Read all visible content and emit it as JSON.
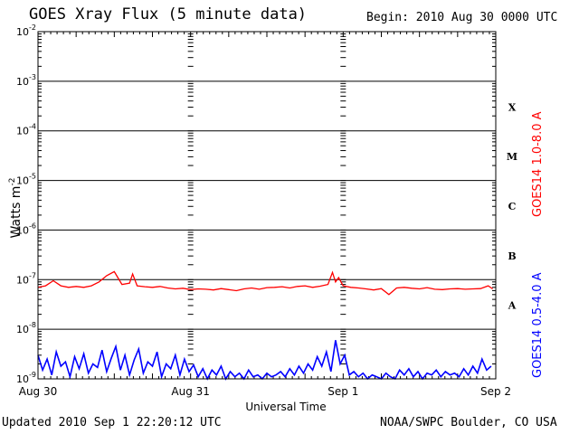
{
  "header": {
    "title": "GOES Xray Flux (5 minute data)",
    "begin": "Begin:  2010 Aug 30 0000 UTC"
  },
  "footer": {
    "updated": "Updated 2010 Sep  1 22:20:12 UTC",
    "credit": "NOAA/SWPC Boulder, CO USA"
  },
  "colors": {
    "long_channel": "#ff0000",
    "short_channel": "#0000ff",
    "grid": "#000000"
  },
  "chart_data": {
    "type": "line",
    "title": "GOES Xray Flux (5 minute data)",
    "xlabel": "Universal Time",
    "ylabel": "Watts m",
    "ylabel_superscript": "-2",
    "yscale": "log",
    "ylim": [
      1e-09,
      0.01
    ],
    "xlim_days": [
      0,
      3
    ],
    "y_ticks": [
      {
        "base": "10",
        "exp": "-9"
      },
      {
        "base": "10",
        "exp": "-8"
      },
      {
        "base": "10",
        "exp": "-7"
      },
      {
        "base": "10",
        "exp": "-6"
      },
      {
        "base": "10",
        "exp": "-5"
      },
      {
        "base": "10",
        "exp": "-4"
      },
      {
        "base": "10",
        "exp": "-3"
      },
      {
        "base": "10",
        "exp": "-2"
      }
    ],
    "x_ticks": [
      "Aug 30",
      "Aug 31",
      "Sep 1",
      "Sep 2"
    ],
    "flare_classes": [
      "A",
      "B",
      "C",
      "M",
      "X"
    ],
    "grid": true,
    "series": [
      {
        "name": "GOES14 1.0-8.0 A",
        "color": "#ff0000",
        "x_days": [
          0.0,
          0.05,
          0.1,
          0.15,
          0.2,
          0.25,
          0.3,
          0.35,
          0.4,
          0.45,
          0.5,
          0.55,
          0.6,
          0.62,
          0.65,
          0.7,
          0.75,
          0.8,
          0.85,
          0.9,
          0.95,
          1.0,
          1.05,
          1.1,
          1.15,
          1.2,
          1.25,
          1.3,
          1.35,
          1.4,
          1.45,
          1.5,
          1.55,
          1.6,
          1.65,
          1.7,
          1.75,
          1.8,
          1.85,
          1.9,
          1.93,
          1.95,
          1.97,
          2.0,
          2.05,
          2.1,
          2.15,
          2.2,
          2.25,
          2.3,
          2.35,
          2.4,
          2.45,
          2.5,
          2.55,
          2.6,
          2.65,
          2.7,
          2.75,
          2.8,
          2.85,
          2.9,
          2.95,
          2.98
        ],
        "values": [
          7e-08,
          7.5e-08,
          9.5e-08,
          7.5e-08,
          7e-08,
          7.3e-08,
          7e-08,
          7.5e-08,
          9e-08,
          1.2e-07,
          1.45e-07,
          8e-08,
          8.5e-08,
          1.3e-07,
          7.5e-08,
          7.2e-08,
          7e-08,
          7.3e-08,
          6.8e-08,
          6.5e-08,
          6.7e-08,
          6.3e-08,
          6.5e-08,
          6.4e-08,
          6.2e-08,
          6.6e-08,
          6.3e-08,
          6e-08,
          6.5e-08,
          6.8e-08,
          6.4e-08,
          6.9e-08,
          7e-08,
          7.2e-08,
          6.8e-08,
          7.3e-08,
          7.5e-08,
          7e-08,
          7.4e-08,
          8e-08,
          1.4e-07,
          9e-08,
          1.1e-07,
          7.5e-08,
          7e-08,
          6.8e-08,
          6.5e-08,
          6.2e-08,
          6.6e-08,
          5e-08,
          6.8e-08,
          7e-08,
          6.7e-08,
          6.5e-08,
          6.9e-08,
          6.4e-08,
          6.3e-08,
          6.5e-08,
          6.6e-08,
          6.4e-08,
          6.5e-08,
          6.6e-08,
          7.5e-08,
          6.5e-08
        ]
      },
      {
        "name": "GOES14 0.5-4.0 A",
        "color": "#0000ff",
        "x_days": [
          0.0,
          0.03,
          0.06,
          0.09,
          0.12,
          0.15,
          0.18,
          0.21,
          0.24,
          0.27,
          0.3,
          0.33,
          0.36,
          0.39,
          0.42,
          0.45,
          0.48,
          0.51,
          0.54,
          0.57,
          0.6,
          0.63,
          0.66,
          0.69,
          0.72,
          0.75,
          0.78,
          0.81,
          0.84,
          0.87,
          0.9,
          0.93,
          0.96,
          0.99,
          1.02,
          1.05,
          1.08,
          1.11,
          1.14,
          1.17,
          1.2,
          1.23,
          1.26,
          1.29,
          1.32,
          1.35,
          1.38,
          1.41,
          1.44,
          1.47,
          1.5,
          1.53,
          1.56,
          1.59,
          1.62,
          1.65,
          1.68,
          1.71,
          1.74,
          1.77,
          1.8,
          1.83,
          1.86,
          1.89,
          1.92,
          1.95,
          1.98,
          2.01,
          2.04,
          2.07,
          2.1,
          2.13,
          2.16,
          2.19,
          2.22,
          2.25,
          2.28,
          2.31,
          2.34,
          2.37,
          2.4,
          2.43,
          2.46,
          2.49,
          2.52,
          2.55,
          2.58,
          2.61,
          2.64,
          2.67,
          2.7,
          2.73,
          2.76,
          2.79,
          2.82,
          2.85,
          2.88,
          2.91,
          2.94,
          2.97
        ],
        "values": [
          3e-09,
          1.5e-09,
          2.5e-09,
          1.2e-09,
          3.5e-09,
          1.8e-09,
          2.2e-09,
          1.1e-09,
          2.8e-09,
          1.6e-09,
          3.2e-09,
          1.3e-09,
          2e-09,
          1.7e-09,
          3.8e-09,
          1.4e-09,
          2.6e-09,
          4.5e-09,
          1.5e-09,
          3e-09,
          1.2e-09,
          2.4e-09,
          4e-09,
          1.3e-09,
          2.2e-09,
          1.8e-09,
          3.5e-09,
          1.1e-09,
          2e-09,
          1.6e-09,
          3e-09,
          1.2e-09,
          2.5e-09,
          1.4e-09,
          1.9e-09,
          1.1e-09,
          1.6e-09,
          1e-09,
          1.5e-09,
          1.2e-09,
          1.8e-09,
          1e-09,
          1.4e-09,
          1.1e-09,
          1.3e-09,
          1e-09,
          1.5e-09,
          1.1e-09,
          1.2e-09,
          1e-09,
          1.3e-09,
          1.1e-09,
          1.2e-09,
          1.4e-09,
          1.1e-09,
          1.6e-09,
          1.2e-09,
          1.8e-09,
          1.3e-09,
          2e-09,
          1.5e-09,
          2.8e-09,
          1.8e-09,
          3.5e-09,
          1.4e-09,
          6e-09,
          2e-09,
          3e-09,
          1.2e-09,
          1.4e-09,
          1.1e-09,
          1.3e-09,
          1e-09,
          1.2e-09,
          1.1e-09,
          1e-09,
          1.3e-09,
          1.1e-09,
          1e-09,
          1.5e-09,
          1.2e-09,
          1.6e-09,
          1.1e-09,
          1.4e-09,
          1e-09,
          1.3e-09,
          1.2e-09,
          1.5e-09,
          1.1e-09,
          1.4e-09,
          1.2e-09,
          1.3e-09,
          1.1e-09,
          1.6e-09,
          1.2e-09,
          1.8e-09,
          1.3e-09,
          2.5e-09,
          1.5e-09,
          1.8e-09
        ]
      }
    ]
  }
}
